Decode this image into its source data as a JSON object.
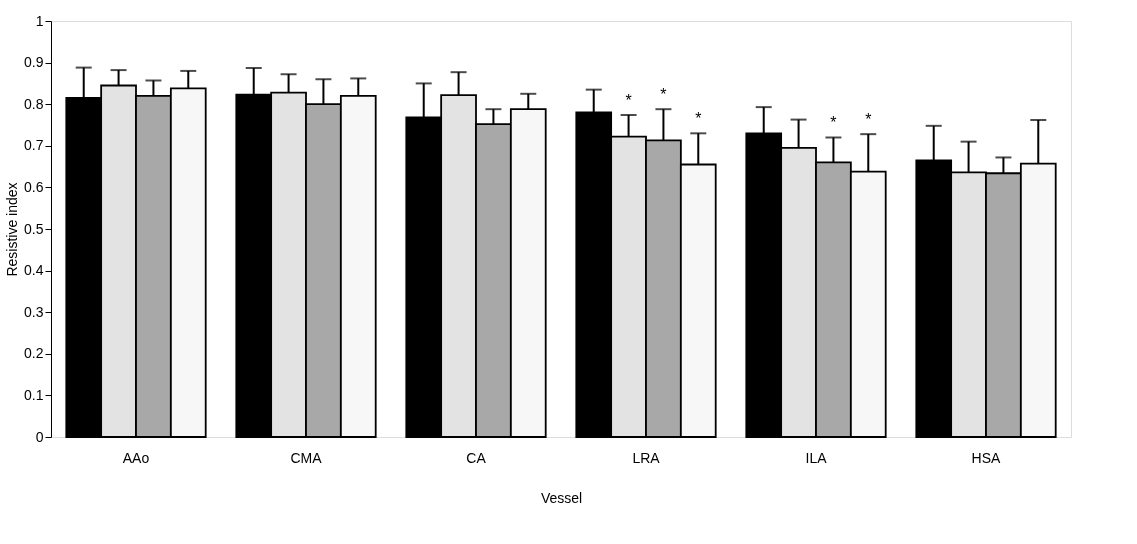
{
  "chart_data": {
    "type": "bar",
    "xlabel": "Vessel",
    "ylabel": "Resistive index",
    "categories": [
      "AAo",
      "CMA",
      "CA",
      "LRA",
      "ILA",
      "HSA"
    ],
    "series": [
      {
        "color": "#000000",
        "values": [
          0.815,
          0.823,
          0.768,
          0.78,
          0.73,
          0.665
        ],
        "errors": [
          [
            0.815,
            0.888
          ],
          [
            0.823,
            0.887
          ],
          [
            0.768,
            0.85
          ],
          [
            0.78,
            0.835
          ],
          [
            0.73,
            0.793
          ],
          [
            0.665,
            0.748
          ]
        ]
      },
      {
        "color": "#e3e3e3",
        "values": [
          0.845,
          0.828,
          0.822,
          0.722,
          0.695,
          0.636
        ],
        "errors": [
          [
            0.845,
            0.882
          ],
          [
            0.828,
            0.872
          ],
          [
            0.822,
            0.877
          ],
          [
            0.722,
            0.774
          ],
          [
            0.695,
            0.763
          ],
          [
            0.636,
            0.71
          ]
        ],
        "value_labels": [
          null,
          null,
          null,
          "*",
          null,
          null
        ]
      },
      {
        "color": "#a8a8a8",
        "values": [
          0.82,
          0.8,
          0.752,
          0.713,
          0.66,
          0.634
        ],
        "errors": [
          [
            0.82,
            0.857
          ],
          [
            0.8,
            0.86
          ],
          [
            0.752,
            0.788
          ],
          [
            0.713,
            0.788
          ],
          [
            0.66,
            0.72
          ],
          [
            0.634,
            0.672
          ]
        ],
        "value_labels": [
          null,
          null,
          null,
          "*",
          "*",
          null
        ]
      },
      {
        "color": "#f7f7f7",
        "values": [
          0.838,
          0.82,
          0.788,
          0.655,
          0.638,
          0.657
        ],
        "errors": [
          [
            0.838,
            0.88
          ],
          [
            0.82,
            0.862
          ],
          [
            0.788,
            0.825
          ],
          [
            0.655,
            0.73
          ],
          [
            0.638,
            0.728
          ],
          [
            0.657,
            0.762
          ]
        ],
        "value_labels": [
          null,
          null,
          null,
          "*",
          "*",
          null
        ]
      }
    ],
    "ylim": [
      0,
      1
    ],
    "yticks": [
      0,
      0.1,
      0.2,
      0.3,
      0.4,
      0.5,
      0.6,
      0.7,
      0.8,
      0.9,
      1
    ],
    "grid": false,
    "legend": false
  }
}
